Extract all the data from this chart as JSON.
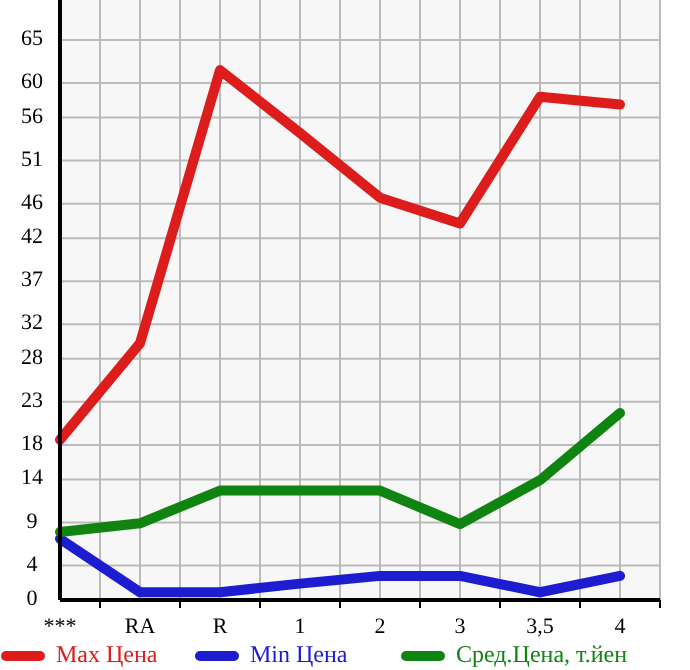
{
  "chart_data": {
    "type": "line",
    "categories": [
      "***",
      "RA",
      "R",
      "1",
      "2",
      "3",
      "3,5",
      "4"
    ],
    "series": [
      {
        "name": "Max Цена",
        "color": "#dd1c1c",
        "values": [
          18.6,
          29.8,
          61.5,
          54.2,
          46.7,
          43.7,
          58.4,
          57.5
        ]
      },
      {
        "name": "Min Цена",
        "color": "#1c1cd0",
        "values": [
          7.1,
          0.9,
          0.9,
          1.9,
          2.8,
          2.8,
          0.9,
          2.8
        ]
      },
      {
        "name": "Сред.Цена, т.йен",
        "color": "#108410",
        "values": [
          7.9,
          8.9,
          12.7,
          12.7,
          12.7,
          8.8,
          13.9,
          21.7
        ]
      }
    ],
    "ylim": [
      0,
      69.64
    ],
    "yticks": [
      0,
      4,
      9,
      14,
      18,
      23,
      28,
      32,
      37,
      42,
      46,
      51,
      56,
      60,
      65
    ],
    "grid": true,
    "legend": "bottom",
    "line_style": "solid"
  }
}
